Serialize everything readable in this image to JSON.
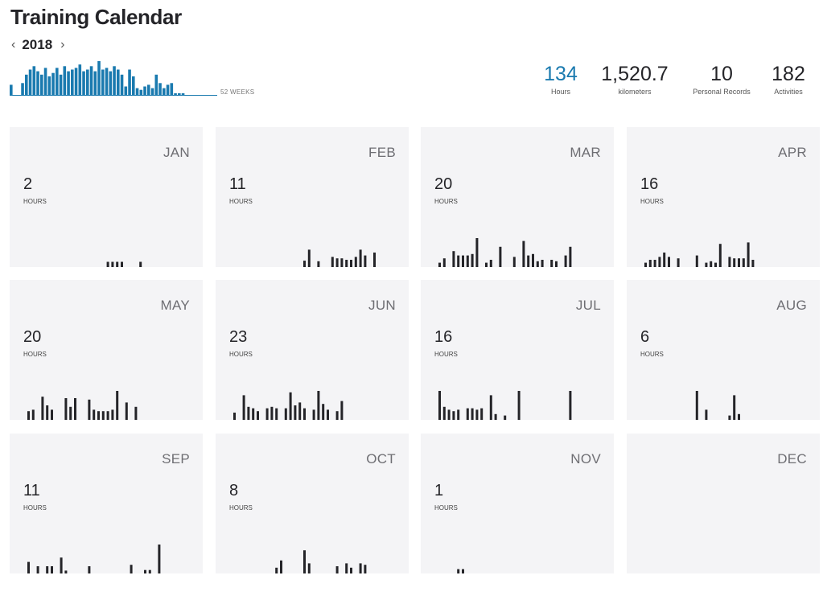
{
  "header": {
    "title": "Training Calendar",
    "year": "2018",
    "prev_icon": "chevron-left-icon",
    "next_icon": "chevron-right-icon",
    "weeks_label": "52 WEEKS"
  },
  "stats": [
    {
      "value": "134",
      "label": "Hours",
      "accent": true
    },
    {
      "value": "1,520.7",
      "label": "kilometers",
      "accent": false
    },
    {
      "value": "10",
      "label": "Personal Records",
      "accent": false
    },
    {
      "value": "182",
      "label": "Activities",
      "accent": false
    }
  ],
  "colors": {
    "accent": "#1a7aaf",
    "bar": "#242428",
    "card": "#f4f4f6"
  },
  "weekly_chart": {
    "weeks": 52,
    "values": [
      0.3,
      0,
      0,
      0.35,
      0.6,
      0.75,
      0.85,
      0.7,
      0.6,
      0.8,
      0.55,
      0.65,
      0.8,
      0.6,
      0.85,
      0.7,
      0.75,
      0.8,
      0.9,
      0.7,
      0.75,
      0.85,
      0.7,
      1.0,
      0.75,
      0.8,
      0.7,
      0.85,
      0.75,
      0.6,
      0.25,
      0.75,
      0.55,
      0.2,
      0.15,
      0.25,
      0.3,
      0.2,
      0.6,
      0.35,
      0.2,
      0.3,
      0.35,
      0.05,
      0.05,
      0.05,
      0,
      0,
      0,
      0,
      0,
      0
    ]
  },
  "months": [
    {
      "name": "JAN",
      "hours": "2",
      "unit": "HOURS",
      "bars": [
        0,
        0,
        0,
        0,
        0,
        0,
        0,
        0,
        0,
        0,
        0,
        0,
        0,
        0,
        0,
        0,
        0,
        0.18,
        0.18,
        0.18,
        0.18,
        0,
        0,
        0,
        0.18,
        0,
        0,
        0,
        0,
        0,
        0
      ]
    },
    {
      "name": "FEB",
      "hours": "11",
      "unit": "HOURS",
      "bars": [
        0,
        0,
        0,
        0,
        0,
        0,
        0,
        0,
        0,
        0,
        0,
        0,
        0,
        0,
        0,
        0.22,
        0.6,
        0,
        0.2,
        0,
        0,
        0.35,
        0.3,
        0.3,
        0.25,
        0.25,
        0.35,
        0.6,
        0.4,
        0,
        0.5
      ]
    },
    {
      "name": "MAR",
      "hours": "20",
      "unit": "HOURS",
      "bars": [
        0.15,
        0.3,
        0,
        0.55,
        0.4,
        0.4,
        0.4,
        0.45,
        1.0,
        0,
        0.15,
        0.25,
        0,
        0.7,
        0,
        0,
        0.35,
        0,
        0.9,
        0.4,
        0.45,
        0.2,
        0.25,
        0,
        0.25,
        0.2,
        0,
        0.4,
        0.7,
        0,
        0
      ]
    },
    {
      "name": "APR",
      "hours": "16",
      "unit": "HOURS",
      "bars": [
        0.15,
        0.25,
        0.25,
        0.35,
        0.5,
        0.35,
        0,
        0.3,
        0,
        0,
        0,
        0.4,
        0,
        0.15,
        0.2,
        0.15,
        0.8,
        0,
        0.35,
        0.3,
        0.3,
        0.3,
        0.85,
        0.25,
        0,
        0,
        0,
        0,
        0,
        0,
        0
      ]
    },
    {
      "name": "MAY",
      "hours": "20",
      "unit": "HOURS",
      "bars": [
        0.3,
        0.35,
        0,
        0.8,
        0.5,
        0.35,
        0,
        0,
        0.75,
        0.45,
        0.75,
        0,
        0,
        0.7,
        0.35,
        0.3,
        0.3,
        0.3,
        0.35,
        1.0,
        0,
        0.6,
        0,
        0.45,
        0,
        0,
        0,
        0,
        0,
        0,
        0
      ]
    },
    {
      "name": "JUN",
      "hours": "23",
      "unit": "HOURS",
      "bars": [
        0.25,
        0,
        0.85,
        0.45,
        0.4,
        0.3,
        0,
        0.4,
        0.45,
        0.4,
        0,
        0.4,
        0.95,
        0.5,
        0.6,
        0.4,
        0,
        0.35,
        1.0,
        0.55,
        0.35,
        0,
        0.3,
        0.65,
        0,
        0,
        0,
        0,
        0,
        0,
        0
      ]
    },
    {
      "name": "JUL",
      "hours": "16",
      "unit": "HOURS",
      "bars": [
        1.0,
        0.45,
        0.35,
        0.3,
        0.35,
        0,
        0.4,
        0.4,
        0.35,
        0.4,
        0,
        0.85,
        0.2,
        0,
        0.15,
        0,
        0,
        1.0,
        0,
        0,
        0,
        0,
        0,
        0,
        0,
        0,
        0,
        0,
        1.0,
        0,
        0
      ]
    },
    {
      "name": "AUG",
      "hours": "6",
      "unit": "HOURS",
      "bars": [
        0,
        0,
        0,
        0,
        0,
        0,
        0,
        0,
        0,
        0,
        0,
        1.0,
        0,
        0.35,
        0,
        0,
        0,
        0,
        0.15,
        0.85,
        0.2,
        0,
        0,
        0,
        0,
        0,
        0,
        0,
        0,
        0,
        0
      ]
    },
    {
      "name": "SEP",
      "hours": "11",
      "unit": "HOURS",
      "bars": [
        0.4,
        0,
        0.25,
        0,
        0.25,
        0.25,
        0,
        0.55,
        0.1,
        0,
        0,
        0,
        0,
        0.25,
        0,
        0,
        0,
        0,
        0,
        0,
        0,
        0,
        0.3,
        0,
        0,
        0.12,
        0.12,
        0,
        1.0,
        0,
        0
      ]
    },
    {
      "name": "OCT",
      "hours": "8",
      "unit": "HOURS",
      "bars": [
        0,
        0,
        0,
        0,
        0,
        0,
        0,
        0,
        0,
        0.2,
        0.45,
        0,
        0,
        0,
        0,
        0.8,
        0.35,
        0,
        0,
        0,
        0,
        0,
        0.25,
        0,
        0.35,
        0.2,
        0,
        0.35,
        0.3,
        0,
        0
      ]
    },
    {
      "name": "NOV",
      "hours": "1",
      "unit": "HOURS",
      "bars": [
        0,
        0,
        0,
        0,
        0.15,
        0.15,
        0,
        0,
        0,
        0,
        0,
        0,
        0,
        0,
        0,
        0,
        0,
        0,
        0,
        0,
        0,
        0,
        0,
        0,
        0,
        0,
        0,
        0,
        0,
        0,
        0
      ]
    },
    {
      "name": "DEC",
      "hours": "",
      "unit": "",
      "bars": []
    }
  ]
}
